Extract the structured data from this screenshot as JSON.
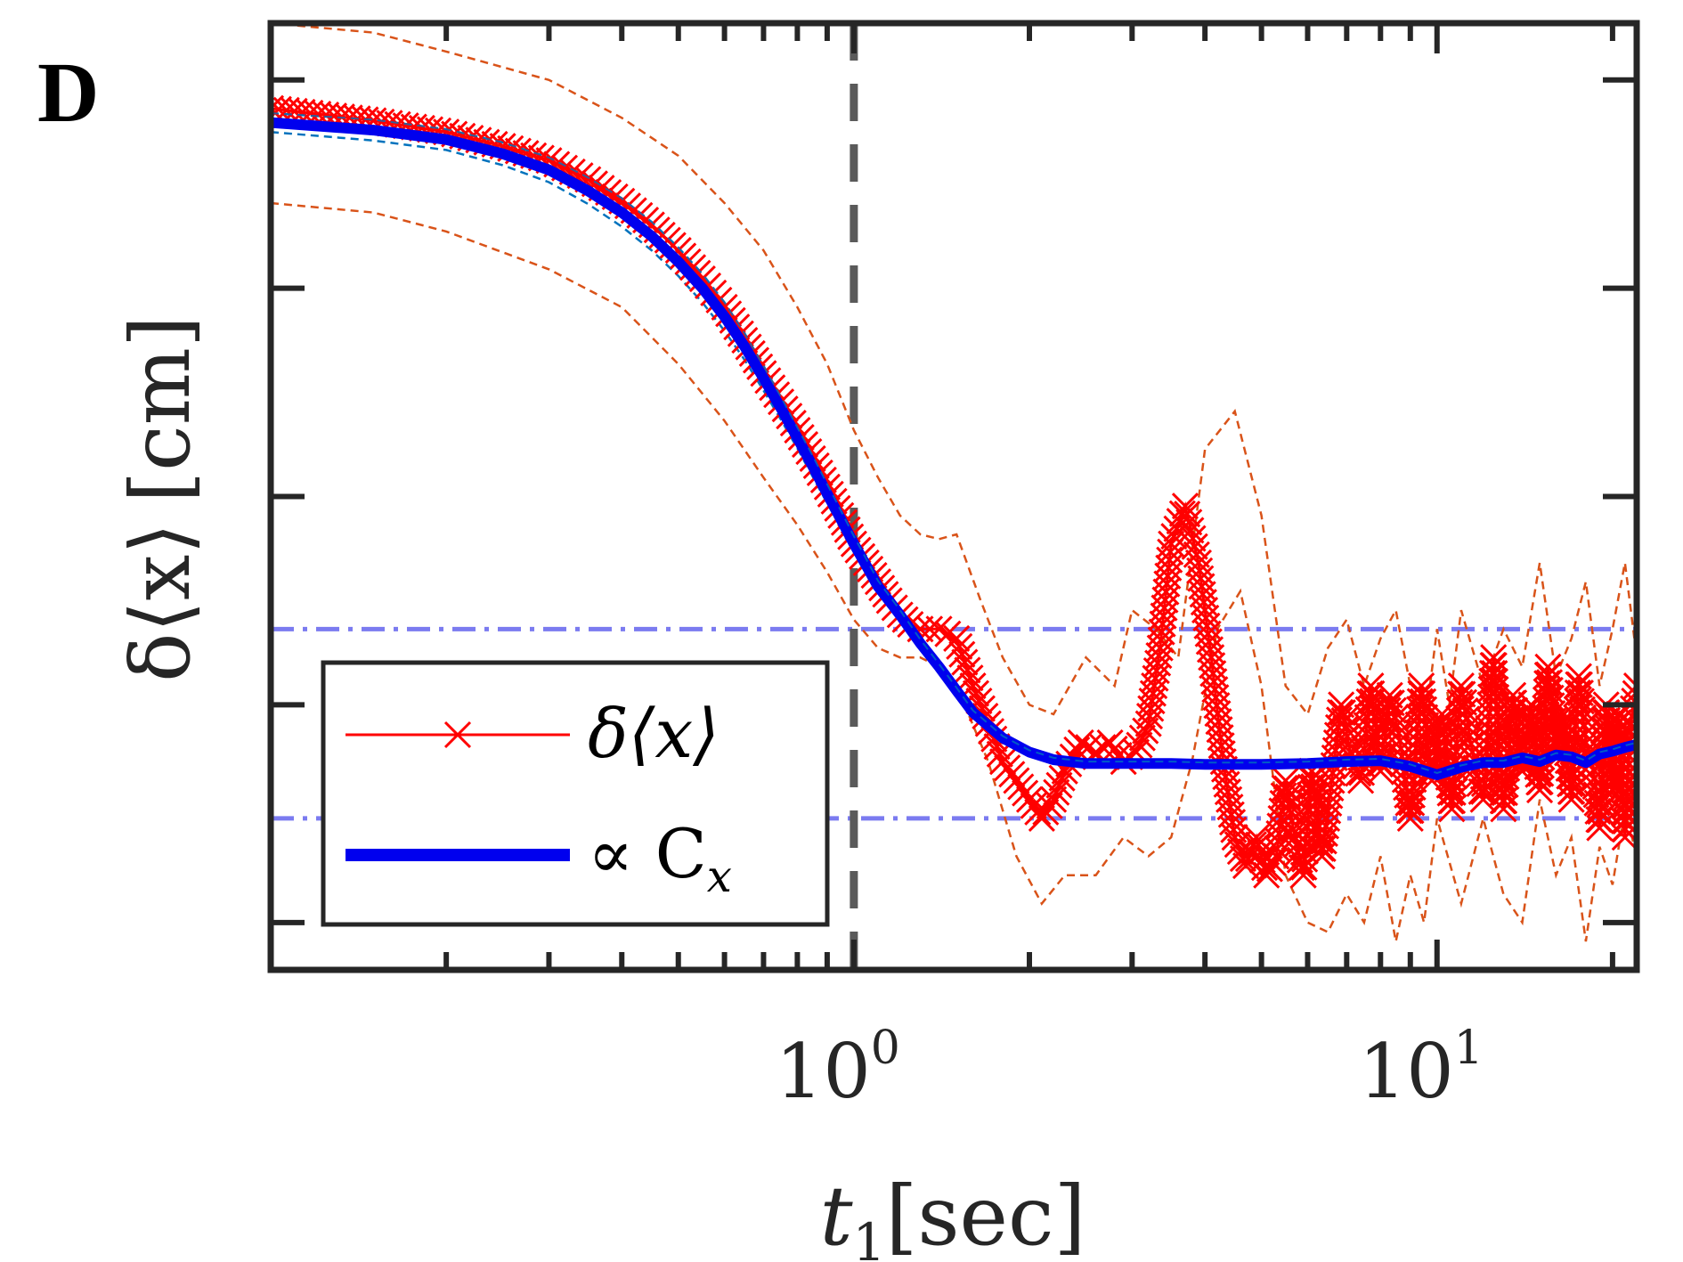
{
  "panel_label": "D",
  "chart_data": {
    "type": "line",
    "xscale": "log",
    "xlim": [
      0.1,
      22
    ],
    "ylim": [
      0,
      1
    ],
    "xlabel": "t₁ [sec]",
    "ylabel": "δ⟨x⟩ [cm]",
    "xlabel_parts": {
      "var": "t",
      "sub": "1",
      "unit": "[sec]"
    },
    "ylabel_parts": {
      "var": "δ⟨x⟩",
      "unit": "[cm]"
    },
    "x_ticks": [
      1,
      10
    ],
    "x_tick_labels": [
      {
        "base": "10",
        "exp": "0"
      },
      {
        "base": "10",
        "exp": "1"
      }
    ],
    "y_ticks": [
      0.05,
      0.28,
      0.5,
      0.72,
      0.94
    ],
    "y_tick_labels": [],
    "grid": false,
    "legend_position": "bottom-left",
    "vline": {
      "x": 1.0,
      "style": "dashed",
      "color": "#5a5a5a"
    },
    "hlines": [
      {
        "y": 0.36,
        "style": "dash-dot",
        "color": "#7b7bf0"
      },
      {
        "y": 0.16,
        "style": "dash-dot",
        "color": "#7b7bf0"
      }
    ],
    "series": [
      {
        "name": "δ⟨x⟩",
        "legend_label": "δ⟨x⟩",
        "color": "#ff0000",
        "marker": "x",
        "x": [
          0.1,
          0.15,
          0.2,
          0.25,
          0.3,
          0.35,
          0.4,
          0.45,
          0.5,
          0.55,
          0.6,
          0.65,
          0.7,
          0.75,
          0.8,
          0.85,
          0.9,
          0.95,
          1.0,
          1.05,
          1.1,
          1.15,
          1.2,
          1.25,
          1.3,
          1.4,
          1.5,
          1.6,
          1.7,
          1.8,
          1.9,
          2.0,
          2.1,
          2.2,
          2.3,
          2.45,
          2.6,
          2.75,
          2.9,
          3.05,
          3.2,
          3.35,
          3.5,
          3.7,
          3.9,
          4.1,
          4.3,
          4.5,
          4.7,
          4.9,
          5.1,
          5.3,
          5.5,
          5.7,
          5.9,
          6.1,
          6.35,
          6.6,
          6.85,
          7.1,
          7.4,
          7.7,
          8.0,
          8.3,
          8.6,
          9.0,
          9.4,
          9.8,
          10.2,
          10.6,
          11.0,
          11.5,
          12.0,
          12.5,
          13.0,
          13.5,
          14.0,
          14.5,
          15.0,
          15.5,
          16.0,
          16.5,
          17.0,
          17.5,
          18.0,
          18.5,
          19.0,
          19.5,
          20.0,
          20.5,
          21.0,
          21.5,
          22.0
        ],
        "y": [
          0.91,
          0.897,
          0.885,
          0.87,
          0.855,
          0.835,
          0.812,
          0.787,
          0.76,
          0.73,
          0.7,
          0.665,
          0.63,
          0.6,
          0.57,
          0.54,
          0.51,
          0.48,
          0.45,
          0.43,
          0.41,
          0.39,
          0.375,
          0.365,
          0.36,
          0.36,
          0.35,
          0.3,
          0.26,
          0.22,
          0.2,
          0.18,
          0.16,
          0.18,
          0.21,
          0.24,
          0.23,
          0.24,
          0.22,
          0.23,
          0.26,
          0.34,
          0.45,
          0.49,
          0.43,
          0.33,
          0.22,
          0.14,
          0.11,
          0.14,
          0.1,
          0.12,
          0.2,
          0.14,
          0.1,
          0.21,
          0.12,
          0.2,
          0.28,
          0.23,
          0.2,
          0.3,
          0.21,
          0.29,
          0.25,
          0.16,
          0.3,
          0.2,
          0.27,
          0.17,
          0.3,
          0.23,
          0.18,
          0.33,
          0.17,
          0.29,
          0.21,
          0.28,
          0.19,
          0.32,
          0.23,
          0.27,
          0.18,
          0.31,
          0.24,
          0.22,
          0.15,
          0.28,
          0.19,
          0.27,
          0.14,
          0.26,
          0.3
        ]
      },
      {
        "name": "∝ C_x",
        "legend_label": "∝ C",
        "legend_sub": "x",
        "color": "#0000ee",
        "x": [
          0.1,
          0.15,
          0.2,
          0.25,
          0.3,
          0.35,
          0.4,
          0.45,
          0.5,
          0.55,
          0.6,
          0.65,
          0.7,
          0.75,
          0.8,
          0.85,
          0.9,
          0.95,
          1.0,
          1.05,
          1.1,
          1.2,
          1.3,
          1.4,
          1.5,
          1.6,
          1.8,
          2.0,
          2.2,
          2.5,
          3.0,
          3.5,
          4.0,
          5.0,
          6.0,
          7.0,
          8.0,
          9.0,
          10.0,
          11.0,
          12.0,
          13.0,
          14.0,
          15.0,
          16.0,
          17.0,
          18.0,
          19.0,
          20.0,
          21.0,
          22.0
        ],
        "y": [
          0.895,
          0.887,
          0.877,
          0.862,
          0.845,
          0.823,
          0.8,
          0.775,
          0.748,
          0.72,
          0.69,
          0.658,
          0.625,
          0.593,
          0.562,
          0.532,
          0.503,
          0.476,
          0.45,
          0.427,
          0.405,
          0.375,
          0.345,
          0.32,
          0.295,
          0.272,
          0.245,
          0.23,
          0.222,
          0.218,
          0.218,
          0.218,
          0.217,
          0.217,
          0.218,
          0.22,
          0.221,
          0.215,
          0.206,
          0.214,
          0.219,
          0.219,
          0.224,
          0.22,
          0.227,
          0.225,
          0.219,
          0.228,
          0.231,
          0.235,
          0.238
        ]
      },
      {
        "name": "δ⟨x⟩ upper bound",
        "color": "#d95319",
        "style": "dashed",
        "x": [
          0.1,
          0.15,
          0.2,
          0.3,
          0.4,
          0.5,
          0.6,
          0.7,
          0.8,
          0.9,
          1.0,
          1.1,
          1.2,
          1.3,
          1.4,
          1.5,
          1.65,
          1.8,
          2.0,
          2.2,
          2.5,
          2.8,
          3.0,
          3.3,
          3.6,
          4.0,
          4.5,
          5.0,
          5.5,
          6.0,
          6.5,
          7.0,
          7.5,
          8.0,
          8.5,
          9.0,
          9.5,
          10.0,
          10.5,
          11.0,
          12.0,
          13.0,
          14.0,
          15.0,
          16.0,
          17.0,
          18.0,
          19.0,
          20.0,
          21.0,
          22.0
        ],
        "y": [
          1.0,
          0.99,
          0.97,
          0.94,
          0.9,
          0.86,
          0.81,
          0.76,
          0.7,
          0.64,
          0.57,
          0.52,
          0.48,
          0.46,
          0.455,
          0.46,
          0.39,
          0.33,
          0.28,
          0.27,
          0.33,
          0.3,
          0.38,
          0.36,
          0.33,
          0.55,
          0.59,
          0.48,
          0.3,
          0.27,
          0.34,
          0.37,
          0.3,
          0.35,
          0.38,
          0.3,
          0.25,
          0.36,
          0.28,
          0.38,
          0.3,
          0.36,
          0.32,
          0.43,
          0.31,
          0.35,
          0.41,
          0.3,
          0.36,
          0.43,
          0.33
        ]
      },
      {
        "name": "δ⟨x⟩ lower bound",
        "color": "#d95319",
        "style": "dashed",
        "x": [
          0.1,
          0.15,
          0.2,
          0.3,
          0.4,
          0.5,
          0.6,
          0.7,
          0.8,
          0.9,
          1.0,
          1.1,
          1.2,
          1.3,
          1.4,
          1.5,
          1.7,
          1.9,
          2.1,
          2.3,
          2.6,
          2.9,
          3.2,
          3.5,
          3.8,
          4.2,
          4.6,
          5.0,
          5.5,
          6.0,
          6.5,
          7.0,
          7.5,
          8.0,
          8.5,
          9.0,
          9.5,
          10.0,
          11.0,
          12.0,
          13.0,
          14.0,
          15.0,
          16.0,
          17.0,
          18.0,
          19.0,
          20.0,
          21.0,
          22.0
        ],
        "y": [
          0.81,
          0.8,
          0.78,
          0.74,
          0.7,
          0.64,
          0.58,
          0.52,
          0.47,
          0.42,
          0.37,
          0.34,
          0.33,
          0.33,
          0.32,
          0.3,
          0.22,
          0.12,
          0.07,
          0.1,
          0.1,
          0.14,
          0.12,
          0.14,
          0.22,
          0.36,
          0.4,
          0.3,
          0.1,
          0.05,
          0.04,
          0.08,
          0.05,
          0.12,
          0.03,
          0.1,
          0.05,
          0.16,
          0.07,
          0.16,
          0.08,
          0.05,
          0.18,
          0.1,
          0.14,
          0.03,
          0.13,
          0.09,
          0.17,
          0.12
        ]
      },
      {
        "name": "∝ C_x upper bound",
        "color": "#0072bd",
        "style": "dashed",
        "x": [
          0.1,
          0.15,
          0.2,
          0.25,
          0.3,
          0.35,
          0.4,
          0.45,
          0.5,
          0.55,
          0.6,
          0.65,
          0.7,
          0.75,
          0.8,
          0.85,
          0.9,
          0.95,
          1.0,
          1.05,
          1.1,
          1.2,
          1.3,
          1.4,
          1.5,
          1.6,
          1.8,
          2.0,
          2.2,
          2.5,
          3.0,
          3.5,
          4.0,
          5.0,
          6.0,
          7.0,
          8.0,
          9.0,
          10.0,
          11.0,
          12.0,
          13.0,
          14.0,
          15.0,
          16.0,
          17.0,
          18.0,
          19.0,
          20.0,
          21.0,
          22.0
        ],
        "y": [
          0.905,
          0.898,
          0.888,
          0.874,
          0.858,
          0.837,
          0.815,
          0.79,
          0.763,
          0.735,
          0.705,
          0.672,
          0.638,
          0.605,
          0.573,
          0.543,
          0.513,
          0.485,
          0.458,
          0.434,
          0.411,
          0.38,
          0.349,
          0.323,
          0.298,
          0.274,
          0.247,
          0.232,
          0.224,
          0.22,
          0.22,
          0.22,
          0.219,
          0.219,
          0.22,
          0.222,
          0.223,
          0.217,
          0.208,
          0.216,
          0.221,
          0.221,
          0.226,
          0.222,
          0.229,
          0.227,
          0.221,
          0.23,
          0.233,
          0.237,
          0.24
        ]
      },
      {
        "name": "∝ C_x lower bound",
        "color": "#0072bd",
        "style": "dashed",
        "x": [
          0.1,
          0.15,
          0.2,
          0.25,
          0.3,
          0.35,
          0.4,
          0.45,
          0.5,
          0.55,
          0.6,
          0.65,
          0.7,
          0.75,
          0.8,
          0.85,
          0.9,
          0.95,
          1.0,
          1.05,
          1.1,
          1.2,
          1.3,
          1.4,
          1.5,
          1.6,
          1.8,
          2.0,
          2.2,
          2.5,
          3.0,
          3.5,
          4.0,
          5.0,
          6.0,
          7.0,
          8.0,
          9.0,
          10.0,
          11.0,
          12.0,
          13.0,
          14.0,
          15.0,
          16.0,
          17.0,
          18.0,
          19.0,
          20.0,
          21.0,
          22.0
        ],
        "y": [
          0.885,
          0.876,
          0.866,
          0.85,
          0.832,
          0.809,
          0.785,
          0.76,
          0.733,
          0.705,
          0.675,
          0.644,
          0.612,
          0.581,
          0.551,
          0.521,
          0.493,
          0.467,
          0.442,
          0.42,
          0.399,
          0.37,
          0.341,
          0.317,
          0.292,
          0.27,
          0.243,
          0.228,
          0.22,
          0.216,
          0.216,
          0.216,
          0.215,
          0.215,
          0.216,
          0.218,
          0.219,
          0.213,
          0.204,
          0.212,
          0.217,
          0.217,
          0.222,
          0.218,
          0.225,
          0.223,
          0.217,
          0.226,
          0.229,
          0.233,
          0.236
        ]
      }
    ]
  }
}
